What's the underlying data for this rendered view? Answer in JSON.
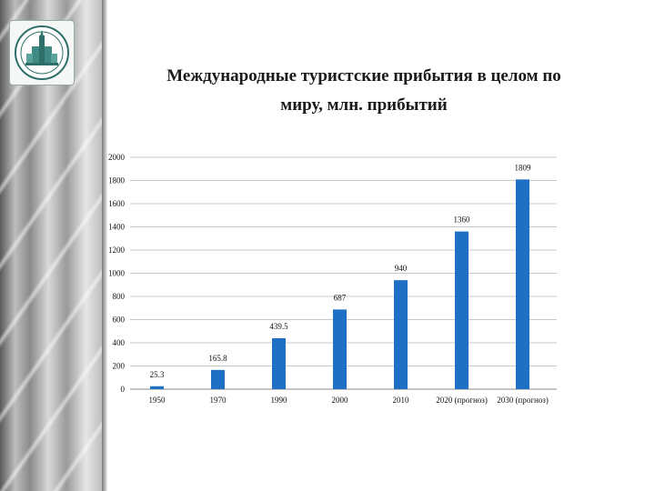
{
  "slide": {
    "title_line1": "Международные туристские прибытия в целом по",
    "title_line2": "миру, млн. прибытий"
  },
  "logo": {
    "icon": "university-emblem-icon"
  },
  "colors": {
    "bar": "#1f6fc5",
    "gridline": "#c8c8c8",
    "axis": "#888888"
  },
  "chart_data": {
    "type": "bar",
    "title": "Международные туристские прибытия в целом по миру, млн. прибытий",
    "xlabel": "",
    "ylabel": "",
    "categories": [
      "1950",
      "1970",
      "1990",
      "2000",
      "2010",
      "2020 (прогноз)",
      "2030 (прогноз)"
    ],
    "values": [
      25.3,
      165.8,
      439.5,
      687,
      940,
      1360,
      1809
    ],
    "value_labels": [
      "25.3",
      "165.8",
      "439.5",
      "687",
      "940",
      "1360",
      "1809"
    ],
    "ylim": [
      0,
      2000
    ],
    "yticks": [
      0,
      200,
      400,
      600,
      800,
      1000,
      1200,
      1400,
      1600,
      1800,
      2000
    ],
    "grid": true,
    "legend": "none"
  }
}
